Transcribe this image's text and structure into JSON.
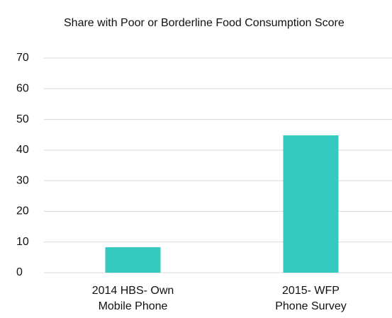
{
  "chart_data": {
    "type": "bar",
    "title": "Share with Poor or Borderline Food Consumption Score",
    "categories": [
      "2014 HBS- Own\nMobile Phone",
      "2015- WFP\nPhone Survey"
    ],
    "values": [
      8.3,
      44.8
    ],
    "color": "#36c9bf",
    "ylim": [
      0,
      70
    ],
    "yticks": [
      0,
      10,
      20,
      30,
      40,
      50,
      60,
      70
    ],
    "grid": true
  }
}
